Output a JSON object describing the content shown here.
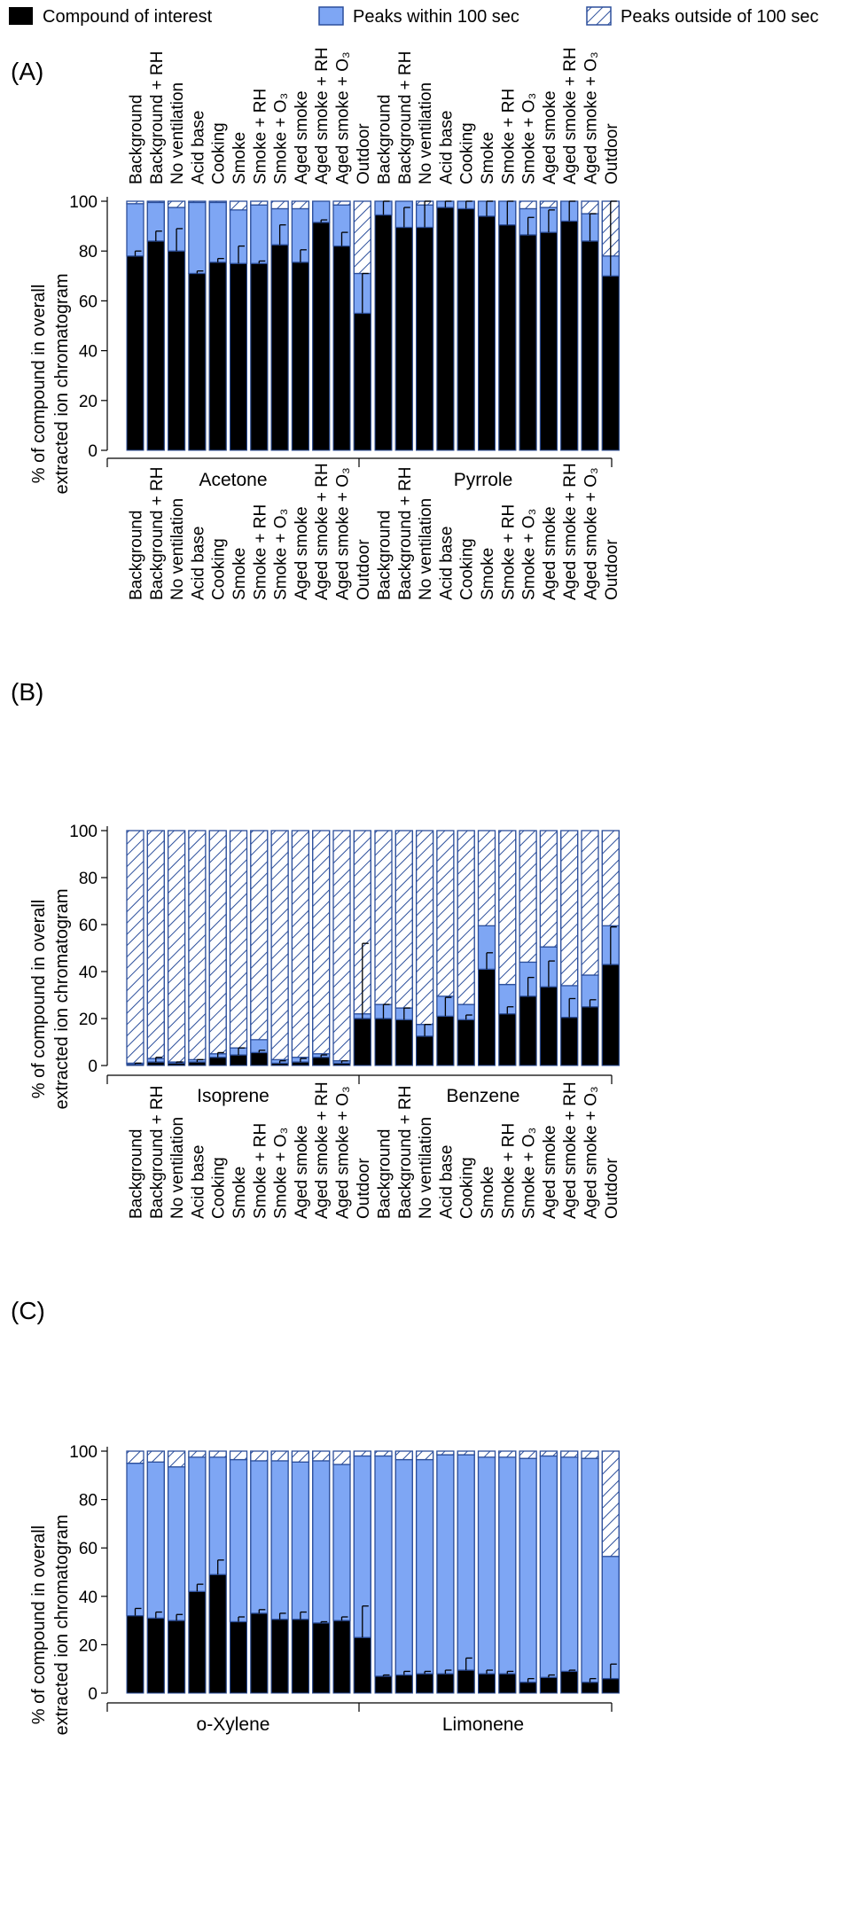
{
  "legend": {
    "items": [
      {
        "key": "compound",
        "label": "Compound of interest",
        "style": "solid",
        "color": "#000000"
      },
      {
        "key": "within",
        "label": "Peaks within 100 sec",
        "style": "solid",
        "color": "#7ea6f4"
      },
      {
        "key": "outside",
        "label": "Peaks outside of 100 sec",
        "style": "hatched",
        "color": "#2c4f9c"
      }
    ]
  },
  "panels": [
    {
      "label": "(A)",
      "ylabel_line1": "% of compound in overall",
      "ylabel_line2": "extracted ion chromatogram"
    },
    {
      "label": "(B)",
      "ylabel_line1": "% of compound in overall",
      "ylabel_line2": "extracted ion chromatogram"
    },
    {
      "label": "(C)",
      "ylabel_line1": "% of compound in overall",
      "ylabel_line2": "extracted ion chromatogram"
    }
  ],
  "conditions": [
    "Background",
    "Background + RH",
    "No ventilation",
    "Acid base",
    "Cooking",
    "Smoke",
    "Smoke + RH",
    "Smoke + O₃",
    "Aged smoke",
    "Aged smoke + RH",
    "Aged smoke + O₃",
    "Outdoor"
  ],
  "yticks": [
    "0",
    "20",
    "40",
    "60",
    "80",
    "100"
  ],
  "chart_data": [
    {
      "type": "bar",
      "stacked": true,
      "panel": "(A)",
      "group": "Acetone",
      "ylim": [
        0,
        100
      ],
      "categories": [
        "Background",
        "Background + RH",
        "No ventilation",
        "Acid base",
        "Cooking",
        "Smoke",
        "Smoke + RH",
        "Smoke + O₃",
        "Aged smoke",
        "Aged smoke + RH",
        "Aged smoke + O₃",
        "Outdoor"
      ],
      "series": [
        {
          "name": "Compound of interest",
          "values": [
            78,
            84,
            80,
            71,
            75.5,
            75,
            75,
            82.5,
            75.5,
            91.5,
            82,
            55
          ],
          "error": [
            2,
            4,
            9,
            1,
            1.5,
            7,
            1,
            8,
            5,
            1,
            5.5,
            16
          ]
        },
        {
          "name": "Peaks within 100 sec",
          "values": [
            21,
            15.5,
            17.5,
            28.5,
            24,
            21.5,
            23.5,
            14.5,
            21.5,
            8.5,
            16.5,
            16
          ]
        },
        {
          "name": "Peaks outside of 100 sec",
          "values": [
            1,
            0.5,
            2.5,
            0.5,
            0.5,
            3.5,
            1.5,
            3,
            3,
            0,
            1.5,
            29
          ]
        }
      ]
    },
    {
      "type": "bar",
      "stacked": true,
      "panel": "(A)",
      "group": "Pyrrole",
      "ylim": [
        0,
        100
      ],
      "categories": [
        "Background",
        "Background + RH",
        "No ventilation",
        "Acid base",
        "Cooking",
        "Smoke",
        "Smoke + RH",
        "Smoke + O₃",
        "Aged smoke",
        "Aged smoke + RH",
        "Aged smoke + O₃",
        "Outdoor"
      ],
      "series": [
        {
          "name": "Compound of interest",
          "values": [
            94.5,
            89.5,
            89.5,
            97.5,
            97,
            94,
            90.5,
            86.5,
            87.5,
            92,
            84,
            70
          ],
          "error": [
            10,
            8,
            12,
            12,
            12,
            12,
            10,
            7,
            9,
            8,
            11,
            32
          ]
        },
        {
          "name": "Peaks within 100 sec",
          "values": [
            5.5,
            10.5,
            9,
            2.5,
            3,
            6,
            9.5,
            10.5,
            10,
            8,
            11,
            8
          ]
        },
        {
          "name": "Peaks outside of 100 sec",
          "values": [
            0,
            0,
            1.5,
            0,
            0,
            0,
            0,
            3,
            2.5,
            0,
            5,
            22
          ]
        }
      ]
    },
    {
      "type": "bar",
      "stacked": true,
      "panel": "(B)",
      "group": "Isoprene",
      "ylim": [
        0,
        100
      ],
      "categories": [
        "Background",
        "Background + RH",
        "No ventilation",
        "Acid base",
        "Cooking",
        "Smoke",
        "Smoke + RH",
        "Smoke + O₃",
        "Aged smoke",
        "Aged smoke + RH",
        "Aged smoke + O₃",
        "Outdoor"
      ],
      "series": [
        {
          "name": "Compound of interest",
          "values": [
            0.5,
            1.5,
            1,
            1.5,
            3.5,
            4.5,
            5.5,
            1,
            1.5,
            3.5,
            1,
            20
          ],
          "error": [
            0.5,
            2,
            0.5,
            1,
            2,
            3,
            1,
            1,
            1.5,
            1,
            1,
            32
          ]
        },
        {
          "name": "Peaks within 100 sec",
          "values": [
            0.5,
            1.5,
            0.5,
            1,
            1.5,
            3,
            5.5,
            1.5,
            2,
            1.5,
            1,
            2
          ]
        },
        {
          "name": "Peaks outside of 100 sec",
          "values": [
            99,
            97,
            98.5,
            97.5,
            95,
            92.5,
            89,
            97.5,
            96.5,
            95,
            98,
            78
          ]
        }
      ]
    },
    {
      "type": "bar",
      "stacked": true,
      "panel": "(B)",
      "group": "Benzene",
      "ylim": [
        0,
        100
      ],
      "categories": [
        "Background",
        "Background + RH",
        "No ventilation",
        "Acid base",
        "Cooking",
        "Smoke",
        "Smoke + RH",
        "Smoke + O₃",
        "Aged smoke",
        "Aged smoke + RH",
        "Aged smoke + O₃",
        "Outdoor"
      ],
      "series": [
        {
          "name": "Compound of interest",
          "values": [
            20,
            19.5,
            12.5,
            21,
            19.5,
            41,
            22,
            29.5,
            33.5,
            20.5,
            25,
            43
          ],
          "error": [
            6,
            5,
            5,
            8,
            2,
            7,
            3,
            8,
            11,
            8,
            3,
            16
          ]
        },
        {
          "name": "Peaks within 100 sec",
          "values": [
            6,
            5,
            5,
            8.5,
            6.5,
            18.5,
            12.5,
            14.5,
            17,
            13.5,
            13.5,
            16.5
          ]
        },
        {
          "name": "Peaks outside of 100 sec",
          "values": [
            74,
            75.5,
            82.5,
            70.5,
            74,
            40.5,
            65.5,
            56,
            49.5,
            66,
            61.5,
            40.5
          ]
        }
      ]
    },
    {
      "type": "bar",
      "stacked": true,
      "panel": "(C)",
      "group": "o-Xylene",
      "ylim": [
        0,
        100
      ],
      "categories": [
        "Background",
        "Background + RH",
        "No ventilation",
        "Acid base",
        "Cooking",
        "Smoke",
        "Smoke + RH",
        "Smoke + O₃",
        "Aged smoke",
        "Aged smoke + RH",
        "Aged smoke + O₃",
        "Outdoor"
      ],
      "series": [
        {
          "name": "Compound of interest",
          "values": [
            32,
            31,
            30,
            42,
            49,
            29.5,
            33,
            30.5,
            30.5,
            29,
            30,
            23
          ],
          "error": [
            3,
            2.5,
            2.5,
            3,
            6,
            2,
            1.5,
            2.5,
            3,
            0.5,
            1.5,
            13
          ]
        },
        {
          "name": "Peaks within 100 sec",
          "values": [
            63,
            64.5,
            63.5,
            55.5,
            48.5,
            67,
            63,
            65.5,
            65,
            67,
            64.5,
            75
          ]
        },
        {
          "name": "Peaks outside of 100 sec",
          "values": [
            5,
            4.5,
            6.5,
            2.5,
            2.5,
            3.5,
            4,
            4,
            4.5,
            4,
            5.5,
            2
          ]
        }
      ]
    },
    {
      "type": "bar",
      "stacked": true,
      "panel": "(C)",
      "group": "Limonene",
      "ylim": [
        0,
        100
      ],
      "categories": [
        "Background",
        "Background + RH",
        "No ventilation",
        "Acid base",
        "Cooking",
        "Smoke",
        "Smoke + RH",
        "Smoke + O₃",
        "Aged smoke",
        "Aged smoke + RH",
        "Aged smoke + O₃",
        "Outdoor"
      ],
      "series": [
        {
          "name": "Compound of interest",
          "values": [
            7,
            7.5,
            8,
            8,
            9.5,
            8,
            8,
            4.5,
            6.5,
            9,
            4.5,
            6
          ],
          "error": [
            0.5,
            1.5,
            1,
            1.5,
            5,
            1.5,
            1,
            1.5,
            1,
            0.5,
            1.5,
            6
          ]
        },
        {
          "name": "Peaks within 100 sec",
          "values": [
            91,
            89,
            88.5,
            90.5,
            89,
            89.5,
            89.5,
            92.5,
            91.5,
            88.5,
            92.5,
            50.5
          ]
        },
        {
          "name": "Peaks outside of 100 sec",
          "values": [
            2,
            3.5,
            3.5,
            1.5,
            1.5,
            2.5,
            2.5,
            3,
            2,
            2.5,
            3,
            43.5
          ]
        }
      ]
    }
  ]
}
